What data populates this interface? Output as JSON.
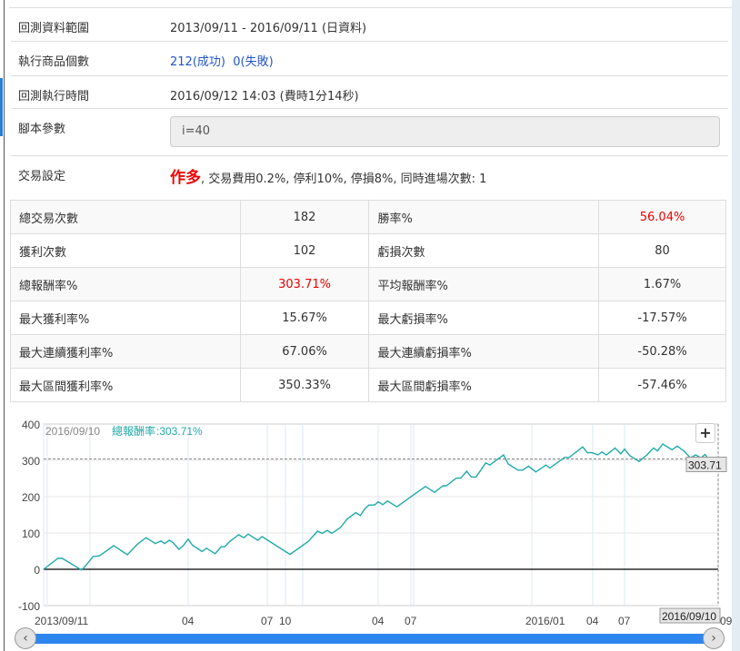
{
  "info": {
    "range_label": "回測資料範圍",
    "range_value": "2013/09/11 - 2016/09/11 (日資料)",
    "count_label": "執行商品個數",
    "count_success": "212(成功)",
    "count_fail": "0(失敗)",
    "time_label": "回測執行時間",
    "time_value": "2016/09/12 14:03 (費時1分14秒)",
    "param_label": "腳本參數",
    "param_value": "i=40",
    "trade_label": "交易設定",
    "trade_direction": "作多",
    "trade_detail": ", 交易費用0.2%, 停利10%, 停損8%, 同時進場次數: 1"
  },
  "stats": [
    [
      "總交易次數",
      "182",
      "勝率%",
      "56.04%"
    ],
    [
      "獲利次數",
      "102",
      "虧損次數",
      "80"
    ],
    [
      "總報酬率%",
      "303.71%",
      "平均報酬率%",
      "1.67%"
    ],
    [
      "最大獲利率%",
      "15.67%",
      "最大虧損率%",
      "-17.57%"
    ],
    [
      "最大連續獲利率%",
      "67.06%",
      "最大連續虧損率%",
      "-50.28%"
    ],
    [
      "最大區間獲利率%",
      "350.33%",
      "最大區間虧損率%",
      "-57.46%"
    ]
  ],
  "colors": {
    "highlight": "#ee0000",
    "line": "#20aaa8",
    "link": "#2255cc",
    "navigator": "#2d86ee"
  },
  "chart_data": {
    "type": "line",
    "ylim": [
      -100,
      400
    ],
    "yticks": [
      "400",
      "300",
      "200",
      "100",
      "0",
      "-100"
    ],
    "xticks": [
      {
        "date": "2013-09-11",
        "label": "2013/09/11"
      },
      {
        "date": "2014-04-01",
        "label": "04"
      },
      {
        "date": "2014-07-01",
        "label": "07"
      },
      {
        "date": "2014-10-01",
        "label": "10"
      },
      {
        "date": "2015-04-01",
        "label": "04"
      },
      {
        "date": "2015-07-01",
        "label": "07"
      },
      {
        "date": "2016-01-01",
        "label": "2016/01"
      },
      {
        "date": "2016-04-01",
        "label": "04"
      },
      {
        "date": "2016-07-01",
        "label": "07"
      },
      {
        "date": "2016-09-10",
        "label": "09"
      }
    ],
    "tooltip_date": "2016/09/10",
    "tooltip_series": "總報酬率",
    "tooltip_value": ":303.71%",
    "last_value_label": "303.71",
    "crosshair_date_label": "2016/09/10",
    "reference_line": 303.71,
    "grid": true,
    "points": [
      [
        "2013-09-11",
        0
      ],
      [
        "2013-10-01",
        30
      ],
      [
        "2013-10-07",
        30
      ],
      [
        "2013-11-03",
        -2
      ],
      [
        "2013-11-08",
        8
      ],
      [
        "2013-11-19",
        35
      ],
      [
        "2013-11-28",
        37
      ],
      [
        "2013-12-18",
        65
      ],
      [
        "2014-01-06",
        40
      ],
      [
        "2014-01-20",
        69
      ],
      [
        "2014-02-01",
        87
      ],
      [
        "2014-02-14",
        71
      ],
      [
        "2014-02-22",
        78
      ],
      [
        "2014-02-27",
        71
      ],
      [
        "2014-03-06",
        80
      ],
      [
        "2014-03-11",
        73
      ],
      [
        "2014-03-19",
        55
      ],
      [
        "2014-03-25",
        65
      ],
      [
        "2014-04-01",
        83
      ],
      [
        "2014-04-06",
        66
      ],
      [
        "2014-04-17",
        49
      ],
      [
        "2014-04-22",
        58
      ],
      [
        "2014-05-02",
        43
      ],
      [
        "2014-05-09",
        62
      ],
      [
        "2014-05-13",
        62
      ],
      [
        "2014-05-19",
        77
      ],
      [
        "2014-05-29",
        95
      ],
      [
        "2014-06-04",
        87
      ],
      [
        "2014-06-09",
        97
      ],
      [
        "2014-06-20",
        80
      ],
      [
        "2014-06-25",
        90
      ],
      [
        "2014-10-10",
        41
      ],
      [
        "2014-11-15",
        77
      ],
      [
        "2014-12-03",
        105
      ],
      [
        "2014-12-12",
        99
      ],
      [
        "2014-12-22",
        107
      ],
      [
        "2014-12-31",
        99
      ],
      [
        "2015-01-17",
        115
      ],
      [
        "2015-01-30",
        138
      ],
      [
        "2015-02-16",
        156
      ],
      [
        "2015-02-25",
        148
      ],
      [
        "2015-03-06",
        167
      ],
      [
        "2015-03-14",
        177
      ],
      [
        "2015-03-25",
        177
      ],
      [
        "2015-04-01",
        186
      ],
      [
        "2015-04-14",
        178
      ],
      [
        "2015-04-27",
        188
      ],
      [
        "2015-05-23",
        172
      ],
      [
        "2015-07-08",
        209
      ],
      [
        "2015-07-23",
        228
      ],
      [
        "2015-08-06",
        212
      ],
      [
        "2015-08-19",
        230
      ],
      [
        "2015-08-24",
        230
      ],
      [
        "2015-09-08",
        251
      ],
      [
        "2015-09-15",
        251
      ],
      [
        "2015-09-24",
        270
      ],
      [
        "2015-10-01",
        254
      ],
      [
        "2015-10-08",
        254
      ],
      [
        "2015-10-23",
        293
      ],
      [
        "2015-10-29",
        287
      ],
      [
        "2015-11-19",
        315
      ],
      [
        "2015-11-26",
        290
      ],
      [
        "2015-12-11",
        273
      ],
      [
        "2015-12-18",
        273
      ],
      [
        "2015-12-27",
        284
      ],
      [
        "2016-01-07",
        268
      ],
      [
        "2016-01-22",
        287
      ],
      [
        "2016-01-28",
        279
      ],
      [
        "2016-02-19",
        308
      ],
      [
        "2016-02-26",
        308
      ],
      [
        "2016-03-17",
        337
      ],
      [
        "2016-03-24",
        321
      ],
      [
        "2016-03-31",
        321
      ],
      [
        "2016-04-16",
        315
      ],
      [
        "2016-04-27",
        323
      ],
      [
        "2016-05-10",
        315
      ],
      [
        "2016-06-04",
        334
      ],
      [
        "2016-06-20",
        318
      ],
      [
        "2016-07-01",
        331
      ],
      [
        "2016-07-05",
        313
      ],
      [
        "2016-07-12",
        297
      ],
      [
        "2016-07-18",
        315
      ],
      [
        "2016-07-23",
        334
      ],
      [
        "2016-07-26",
        326
      ],
      [
        "2016-07-30",
        345
      ],
      [
        "2016-08-06",
        329
      ],
      [
        "2016-08-10",
        339
      ],
      [
        "2016-08-15",
        326
      ],
      [
        "2016-08-20",
        307
      ],
      [
        "2016-08-24",
        315
      ],
      [
        "2016-08-28",
        307
      ],
      [
        "2016-08-31",
        316
      ],
      [
        "2016-09-03",
        303
      ],
      [
        "2016-09-06",
        308
      ],
      [
        "2016-09-10",
        303.71
      ]
    ]
  },
  "navigator": {
    "left_arrow": "‹",
    "right_arrow": "›"
  },
  "zoom_button": "+"
}
